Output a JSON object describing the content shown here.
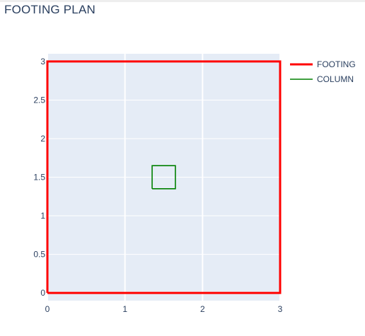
{
  "title": "FOOTING PLAN",
  "chart_data": {
    "type": "line",
    "title": "FOOTING PLAN",
    "xlabel": "",
    "ylabel": "",
    "xlim": [
      0,
      3
    ],
    "ylim": [
      -0.1,
      3.1
    ],
    "x_ticks": [
      0,
      1,
      2,
      3
    ],
    "y_ticks": [
      0,
      0.5,
      1,
      1.5,
      2,
      2.5,
      3
    ],
    "x_tick_labels": [
      "0",
      "1",
      "2",
      "3"
    ],
    "y_tick_labels": [
      "0",
      "0.5",
      "1",
      "1.5",
      "2",
      "2.5",
      "3"
    ],
    "grid": true,
    "legend_position": "top-right",
    "series": [
      {
        "name": "FOOTING",
        "color": "#ff0000",
        "x": [
          0,
          3,
          3,
          0,
          0
        ],
        "y": [
          0,
          0,
          3,
          3,
          0
        ]
      },
      {
        "name": "COLUMN",
        "color": "#008000",
        "x": [
          1.35,
          1.65,
          1.65,
          1.35,
          1.35
        ],
        "y": [
          1.35,
          1.35,
          1.65,
          1.65,
          1.35
        ]
      }
    ]
  }
}
